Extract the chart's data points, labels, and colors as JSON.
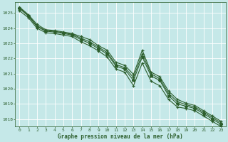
{
  "xlabel": "Graphe pression niveau de la mer (hPa)",
  "bg_color": "#c5e8e8",
  "grid_color": "#b0d0d0",
  "line_color": "#2d5f2d",
  "xlim": [
    -0.5,
    23.5
  ],
  "ylim": [
    1017.5,
    1025.7
  ],
  "yticks": [
    1018,
    1019,
    1020,
    1021,
    1022,
    1023,
    1024,
    1025
  ],
  "xticks": [
    0,
    1,
    2,
    3,
    4,
    5,
    6,
    7,
    8,
    9,
    10,
    11,
    12,
    13,
    14,
    15,
    16,
    17,
    18,
    19,
    20,
    21,
    22,
    23
  ],
  "line1": [
    1025.4,
    1024.9,
    1024.25,
    1023.9,
    1023.85,
    1023.75,
    1023.65,
    1023.45,
    1023.25,
    1022.85,
    1022.55,
    1021.75,
    1021.55,
    1020.95,
    1022.55,
    1021.1,
    1020.8,
    1019.85,
    1019.3,
    1019.05,
    1018.9,
    1018.55,
    1018.2,
    1017.85
  ],
  "line2": [
    1025.35,
    1024.85,
    1024.15,
    1023.85,
    1023.8,
    1023.7,
    1023.6,
    1023.35,
    1023.1,
    1022.75,
    1022.4,
    1021.6,
    1021.4,
    1020.75,
    1022.3,
    1021.0,
    1020.65,
    1019.7,
    1019.15,
    1018.95,
    1018.8,
    1018.45,
    1018.1,
    1017.75
  ],
  "line3": [
    1025.3,
    1024.8,
    1024.1,
    1023.8,
    1023.75,
    1023.65,
    1023.55,
    1023.25,
    1023.0,
    1022.65,
    1022.3,
    1021.5,
    1021.3,
    1020.55,
    1022.1,
    1020.85,
    1020.55,
    1019.55,
    1019.0,
    1018.85,
    1018.7,
    1018.35,
    1018.0,
    1017.65
  ],
  "line4": [
    1025.15,
    1024.7,
    1024.0,
    1023.7,
    1023.65,
    1023.55,
    1023.45,
    1023.1,
    1022.85,
    1022.5,
    1022.1,
    1021.3,
    1021.1,
    1020.2,
    1021.7,
    1020.5,
    1020.2,
    1019.3,
    1018.8,
    1018.7,
    1018.55,
    1018.2,
    1017.85,
    1017.5
  ]
}
